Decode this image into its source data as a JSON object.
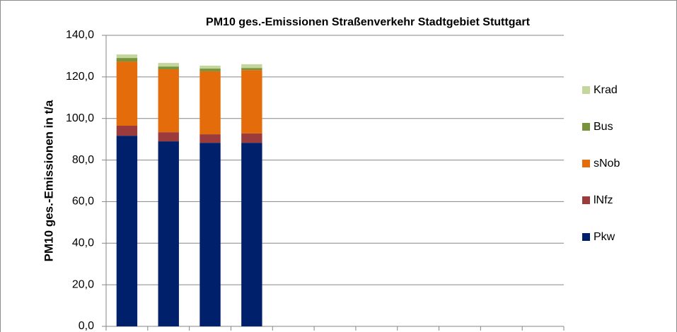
{
  "chart_data": {
    "type": "stacked_bar",
    "title": "PM10 ges.-Emissionen  Straßenverkehr Stadtgebiet Stuttgart",
    "y_label": "PM10 ges.-Emissionen in t/a",
    "categories": [
      null,
      null,
      null,
      null,
      null,
      null,
      null,
      null,
      null,
      null,
      null
    ],
    "series": [
      {
        "name": "Pkw",
        "color": "#00206b",
        "values": [
          91.7,
          89.0,
          88.3,
          88.3,
          null,
          null,
          null,
          null,
          null,
          null,
          null
        ]
      },
      {
        "name": "lNfz",
        "color": "#9b3b3b",
        "values": [
          4.8,
          4.4,
          4.1,
          4.5,
          null,
          null,
          null,
          null,
          null,
          null,
          null
        ]
      },
      {
        "name": "sNob",
        "color": "#e46c0a",
        "values": [
          30.9,
          30.3,
          30.3,
          30.5,
          null,
          null,
          null,
          null,
          null,
          null,
          null
        ]
      },
      {
        "name": "Bus",
        "color": "#77933c",
        "values": [
          1.7,
          1.3,
          1.3,
          1.0,
          null,
          null,
          null,
          null,
          null,
          null,
          null
        ]
      },
      {
        "name": "Krad",
        "color": "#c3d69b",
        "values": [
          1.7,
          1.7,
          1.4,
          1.8,
          null,
          null,
          null,
          null,
          null,
          null,
          null
        ]
      }
    ],
    "ylim": [
      0,
      140
    ],
    "yticks": [
      {
        "value": 0,
        "label": "0,0"
      },
      {
        "value": 20,
        "label": "20,0"
      },
      {
        "value": 40,
        "label": "40,0"
      },
      {
        "value": 60,
        "label": "60,0"
      },
      {
        "value": 80,
        "label": "80,0"
      },
      {
        "value": 100,
        "label": "100,0"
      },
      {
        "value": 120,
        "label": "120,0"
      },
      {
        "value": 140,
        "label": "140,0"
      }
    ],
    "grid": true,
    "legend": "right"
  }
}
